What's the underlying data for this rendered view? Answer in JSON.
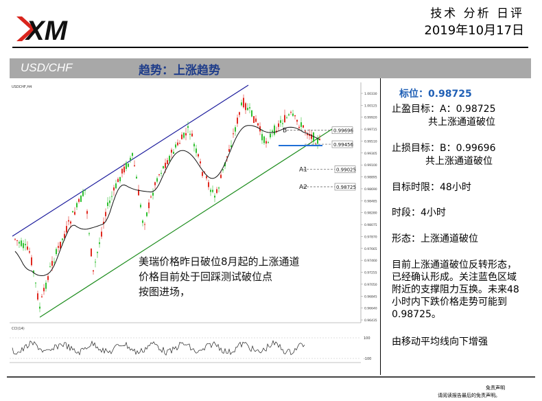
{
  "header": {
    "logo_text": "XM",
    "report_type": "技术 分析 日评",
    "date": "2019年10月17日"
  },
  "band": {
    "pair": "USD/CHF",
    "trend": "趋势：上涨趋势"
  },
  "chart_data": {
    "type": "line",
    "title": "USDCHF,H4",
    "y_ticks": [
      "1.00330",
      "1.00125",
      "0.99920",
      "0.99715",
      "0.99510",
      "0.99305",
      "0.99100",
      "0.98895",
      "0.98690",
      "0.98485",
      "0.98280",
      "0.98075",
      "0.97870",
      "0.97665",
      "0.97460",
      "0.97255",
      "0.97050",
      "0.96845",
      "0.96640",
      "0.96435"
    ],
    "levels": [
      {
        "label": "B",
        "value": "0.99696"
      },
      {
        "label": "",
        "value": "0.99456"
      },
      {
        "label": "A1",
        "value": "0.99025"
      },
      {
        "label": "A2",
        "value": "0.98725"
      }
    ],
    "annotation": [
      "美瑞价格昨日破位8月起的上涨通道",
      "价格目前处于回踩测试破位点",
      "按图进场，"
    ],
    "indicator": {
      "label": "CCI(14)",
      "ticks": [
        "100",
        "0",
        "-100"
      ]
    }
  },
  "info": {
    "target": "标位：0.98725",
    "tp_line1": "止盈目标：A：0.98725",
    "tp_line2": "共上涨通道破位",
    "sl_line1": "止损目标：B：0.99696",
    "sl_line2": "共上涨通道破位",
    "time_limit": "目标时限：48小时",
    "period": "时段：4小时",
    "pattern": "形态：上涨通道破位",
    "desc": [
      "目前上涨通道破位反转形态，",
      "已经确认形成。关注蓝色区域",
      "附近的支撑阻力互换。未来48",
      "小时内下跌价格走势可能到",
      "0.98725。"
    ],
    "ma": "由移动平均线向下增强"
  },
  "disclaimer": {
    "title": "免责声明",
    "text": "请阅读报告最后的免责声明。"
  },
  "colors": {
    "accent": "#1f5fb5",
    "band": "#a8a8a8",
    "channel_upper": "#1a1a9c",
    "channel_lower": "#1c8c1c",
    "bull": "#2fbf2f",
    "bear": "#e0281e"
  }
}
